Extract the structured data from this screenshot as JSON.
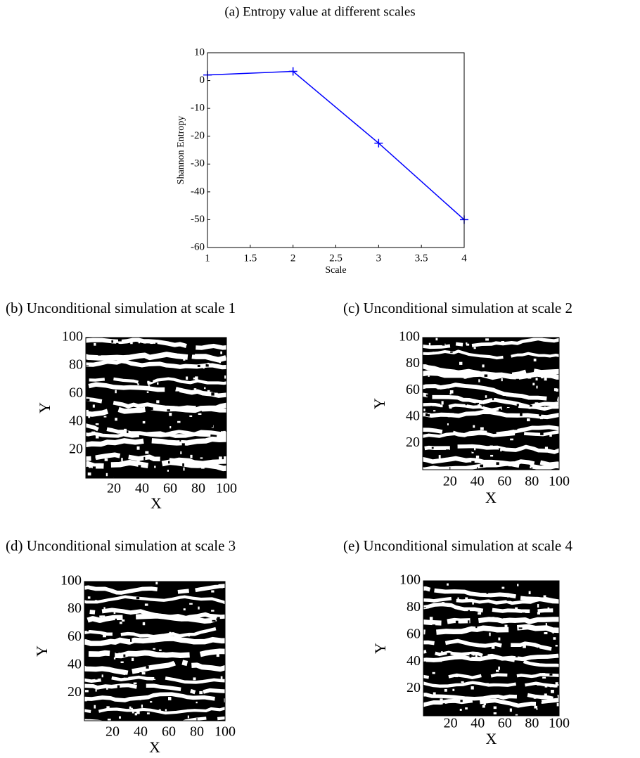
{
  "chart_data": [
    {
      "type": "line",
      "title": "(a) Entropy value at different scales",
      "xlabel": "Scale",
      "ylabel": "Shannon Entropy",
      "x": [
        1,
        2,
        3,
        4
      ],
      "series": [
        {
          "color": "#0000ff",
          "values": [
            2,
            3.3,
            -22.5,
            -50
          ]
        }
      ],
      "xlim": [
        1,
        4
      ],
      "xticks": [
        1,
        1.5,
        2,
        2.5,
        3,
        3.5,
        4
      ],
      "ylim": [
        -60,
        10
      ],
      "yticks": [
        -60,
        -50,
        -40,
        -30,
        -20,
        -10,
        0,
        10
      ]
    },
    {
      "type": "image",
      "title": "(b) Unconditional simulation at scale 1",
      "xlabel": "X",
      "ylabel": "Y",
      "xlim": [
        0,
        100
      ],
      "xticks": [
        20,
        40,
        60,
        80,
        100
      ],
      "ylim": [
        0,
        100
      ],
      "yticks": [
        20,
        40,
        60,
        80,
        100
      ]
    },
    {
      "type": "image",
      "title": "(c) Unconditional simulation at scale 2",
      "xlabel": "X",
      "ylabel": "Y",
      "xlim": [
        0,
        100
      ],
      "xticks": [
        20,
        40,
        60,
        80,
        100
      ],
      "ylim": [
        0,
        100
      ],
      "yticks": [
        20,
        40,
        60,
        80,
        100
      ]
    },
    {
      "type": "image",
      "title": "(d) Unconditional simulation at scale 3",
      "xlabel": "X",
      "ylabel": "Y",
      "xlim": [
        0,
        100
      ],
      "xticks": [
        20,
        40,
        60,
        80,
        100
      ],
      "ylim": [
        0,
        100
      ],
      "yticks": [
        20,
        40,
        60,
        80,
        100
      ]
    },
    {
      "type": "image",
      "title": "(e) Unconditional simulation at scale 4",
      "xlabel": "X",
      "ylabel": "Y",
      "xlim": [
        0,
        100
      ],
      "xticks": [
        20,
        40,
        60,
        80,
        100
      ],
      "ylim": [
        0,
        100
      ],
      "yticks": [
        20,
        40,
        60,
        80,
        100
      ]
    }
  ]
}
